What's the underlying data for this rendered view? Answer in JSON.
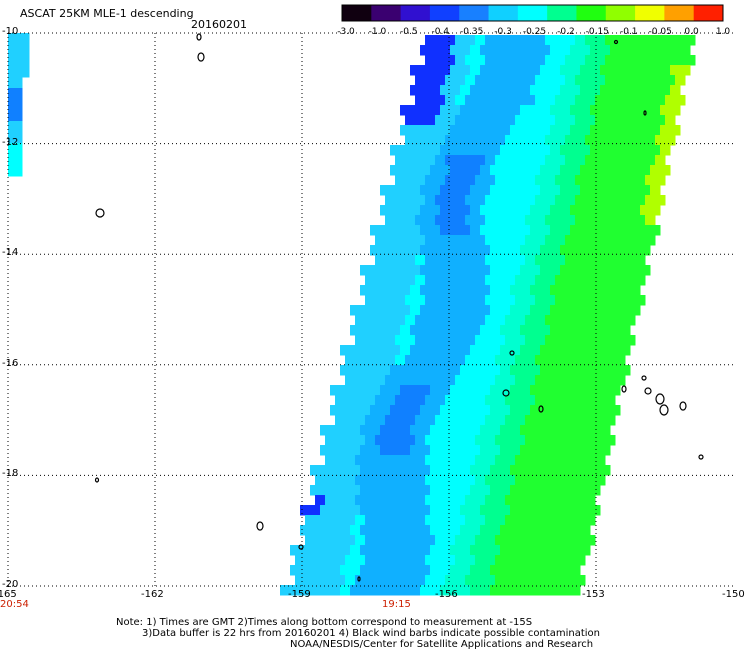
{
  "header": {
    "title": "ASCAT 25KM MLE-1 descending",
    "date": "20160201"
  },
  "colorbar": {
    "labels": [
      "-3.0",
      "-1.0",
      "-0.5",
      "-0.4",
      "-0.35",
      "-0.3",
      "-0.25",
      "-0.2",
      "-0.15",
      "-0.1",
      "-0.05",
      "0.0",
      "1.0"
    ],
    "colors": [
      "#100010",
      "#3a0070",
      "#3010d0",
      "#1040ff",
      "#1880ff",
      "#10d0ff",
      "#00ffff",
      "#00ff90",
      "#20ff10",
      "#90ff00",
      "#f0ff00",
      "#ffa000",
      "#ff2000"
    ]
  },
  "map": {
    "lon_labels": [
      "-165",
      "-162",
      "-159",
      "-156",
      "-153",
      "-150"
    ],
    "lat_labels": [
      "-10",
      "-12",
      "-14",
      "-16",
      "-18",
      "-20"
    ],
    "times": [
      "20:54",
      "19:15"
    ],
    "swath_colors": {
      "deep_blue": "#1030ff",
      "blue": "#1080ff",
      "blue_cyan": "#10b0ff",
      "light_blue": "#20d0ff",
      "cyan": "#00ffff",
      "aqua": "#00ffd0",
      "sea_green": "#00ff90",
      "green": "#20ff30",
      "yellow_green": "#b0ff00",
      "yellow": "#ffff00"
    }
  },
  "footer": {
    "line1": "Note: 1) Times are GMT 2)Times along bottom correspond to measurement at -15S",
    "line2": "3)Data buffer is 22 hrs from 20160201 4) Black wind barbs indicate possible contamination",
    "line3": "NOAA/NESDIS/Center for Satellite Applications and Research"
  }
}
